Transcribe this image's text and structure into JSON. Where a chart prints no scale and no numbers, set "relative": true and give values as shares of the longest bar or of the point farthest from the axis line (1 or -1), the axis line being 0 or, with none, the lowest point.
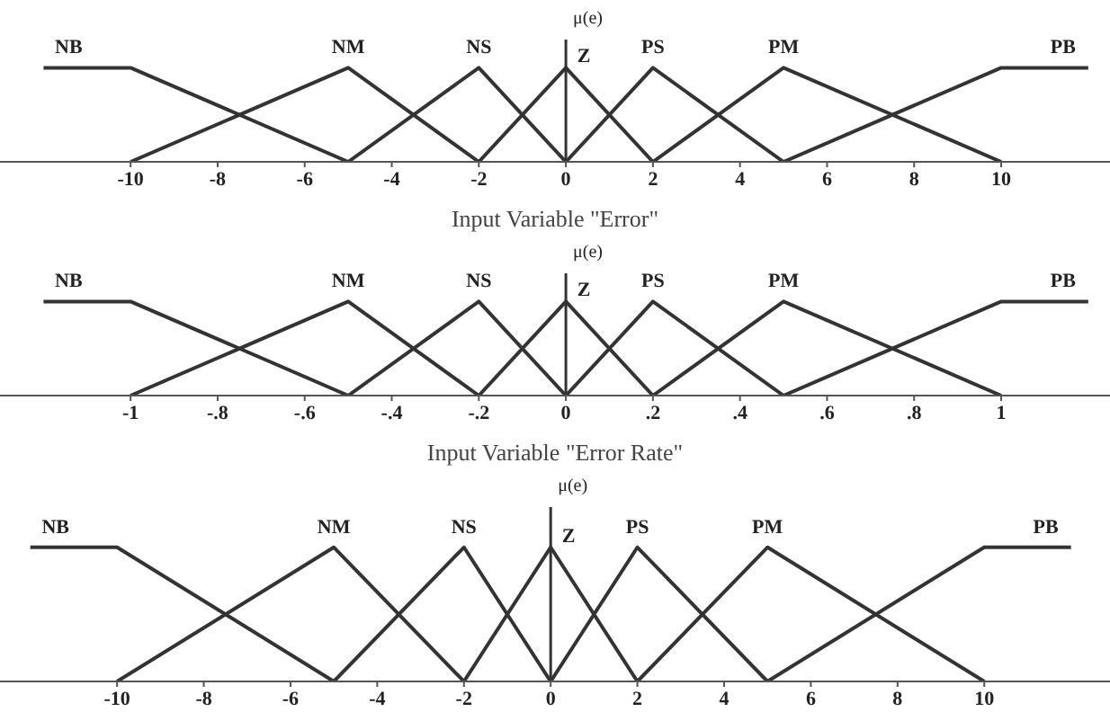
{
  "chart_data": [
    {
      "type": "line",
      "relative": true,
      "xlabel": "Input Variable \"Error\"",
      "xlim": [
        -13,
        12.5
      ],
      "xticks": [
        -10,
        -8,
        -6,
        -4,
        -2,
        0,
        2,
        4,
        6,
        8,
        10
      ],
      "legend": false,
      "grid": false,
      "marker": "none",
      "line_style": "solid",
      "ref_lines": [
        {
          "axis": "x",
          "value": 0,
          "label": "μ(e)",
          "color": "#333333"
        }
      ],
      "series": [
        {
          "name": "NB",
          "color": "#333333",
          "x": [
            -12,
            -10,
            -5
          ],
          "values": [
            1,
            1,
            0
          ]
        },
        {
          "name": "NM",
          "color": "#333333",
          "x": [
            -10,
            -5,
            -2
          ],
          "values": [
            0,
            1,
            0
          ]
        },
        {
          "name": "NS",
          "color": "#333333",
          "x": [
            -5,
            -2,
            0
          ],
          "values": [
            0,
            1,
            0
          ]
        },
        {
          "name": "Z",
          "color": "#333333",
          "x": [
            -2,
            0,
            2
          ],
          "values": [
            0,
            1,
            0
          ]
        },
        {
          "name": "PS",
          "color": "#333333",
          "x": [
            0,
            2,
            5
          ],
          "values": [
            0,
            1,
            0
          ]
        },
        {
          "name": "PM",
          "color": "#333333",
          "x": [
            2,
            5,
            10
          ],
          "values": [
            0,
            1,
            0
          ]
        },
        {
          "name": "PB",
          "color": "#333333",
          "x": [
            5,
            10,
            12
          ],
          "values": [
            0,
            1,
            1
          ]
        }
      ]
    },
    {
      "type": "line",
      "relative": true,
      "xlabel": "Input Variable \"Error Rate\"",
      "xlim": [
        -1.3,
        1.25
      ],
      "xticks": [
        {
          "value": -1,
          "label": "-1"
        },
        {
          "value": -0.8,
          "label": "-.8"
        },
        {
          "value": -0.6,
          "label": "-.6"
        },
        {
          "value": -0.4,
          "label": "-.4"
        },
        {
          "value": -0.2,
          "label": "-.2"
        },
        0,
        {
          "value": 0.2,
          "label": ".2"
        },
        {
          "value": 0.4,
          "label": ".4"
        },
        {
          "value": 0.6,
          "label": ".6"
        },
        {
          "value": 0.8,
          "label": ".8"
        },
        1
      ],
      "legend": false,
      "grid": false,
      "marker": "none",
      "line_style": "solid",
      "ref_lines": [
        {
          "axis": "x",
          "value": 0,
          "label": "μ(e)",
          "color": "#333333"
        }
      ],
      "series": [
        {
          "name": "NB",
          "color": "#333333",
          "x": [
            -1.2,
            -1,
            -0.5
          ],
          "values": [
            1,
            1,
            0
          ]
        },
        {
          "name": "NM",
          "color": "#333333",
          "x": [
            -1,
            -0.5,
            -0.2
          ],
          "values": [
            0,
            1,
            0
          ]
        },
        {
          "name": "NS",
          "color": "#333333",
          "x": [
            -0.5,
            -0.2,
            0
          ],
          "values": [
            0,
            1,
            0
          ]
        },
        {
          "name": "Z",
          "color": "#333333",
          "x": [
            -0.2,
            0,
            0.2
          ],
          "values": [
            0,
            1,
            0
          ]
        },
        {
          "name": "PS",
          "color": "#333333",
          "x": [
            0,
            0.2,
            0.5
          ],
          "values": [
            0,
            1,
            0
          ]
        },
        {
          "name": "PM",
          "color": "#333333",
          "x": [
            0.2,
            0.5,
            1
          ],
          "values": [
            0,
            1,
            0
          ]
        },
        {
          "name": "PB",
          "color": "#333333",
          "x": [
            0.5,
            1,
            1.2
          ],
          "values": [
            0,
            1,
            1
          ]
        }
      ]
    },
    {
      "type": "line",
      "relative": true,
      "xlim": [
        -12.7,
        12.9
      ],
      "xticks": [
        -10,
        -8,
        -6,
        -4,
        -2,
        0,
        2,
        4,
        6,
        8,
        10
      ],
      "legend": false,
      "grid": false,
      "marker": "none",
      "line_style": "solid",
      "ref_lines": [
        {
          "axis": "x",
          "value": 0,
          "label": "μ(e)",
          "color": "#333333"
        }
      ],
      "series": [
        {
          "name": "NB",
          "color": "#333333",
          "x": [
            -12,
            -10,
            -5
          ],
          "values": [
            1,
            1,
            0
          ]
        },
        {
          "name": "NM",
          "color": "#333333",
          "x": [
            -10,
            -5,
            -2
          ],
          "values": [
            0,
            1,
            0
          ]
        },
        {
          "name": "NS",
          "color": "#333333",
          "x": [
            -5,
            -2,
            0
          ],
          "values": [
            0,
            1,
            0
          ]
        },
        {
          "name": "Z",
          "color": "#333333",
          "x": [
            -2,
            0,
            2
          ],
          "values": [
            0,
            1,
            0
          ]
        },
        {
          "name": "PS",
          "color": "#333333",
          "x": [
            0,
            2,
            5
          ],
          "values": [
            0,
            1,
            0
          ]
        },
        {
          "name": "PM",
          "color": "#333333",
          "x": [
            2,
            5,
            10
          ],
          "values": [
            0,
            1,
            0
          ]
        },
        {
          "name": "PB",
          "color": "#333333",
          "x": [
            5,
            10,
            12
          ],
          "values": [
            0,
            1,
            1
          ]
        }
      ]
    }
  ]
}
